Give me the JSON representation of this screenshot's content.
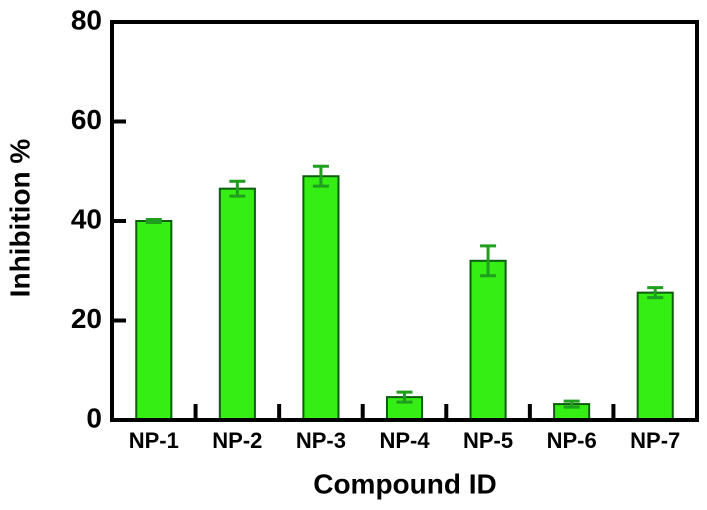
{
  "chart_data": {
    "type": "bar",
    "categories": [
      "NP-1",
      "NP-2",
      "NP-3",
      "NP-4",
      "NP-5",
      "NP-6",
      "NP-7"
    ],
    "values": [
      40,
      46.5,
      49,
      4.6,
      32,
      3.2,
      25.6
    ],
    "errors": [
      0.3,
      1.5,
      2,
      1,
      3,
      0.6,
      1
    ],
    "color": "#35ee14",
    "error_color": "#1f9e1f",
    "x_label": "Compound ID",
    "y_label": "Inhibition %",
    "ylim": [
      0,
      80
    ],
    "yticks": [
      0,
      20,
      40,
      60,
      80
    ]
  }
}
